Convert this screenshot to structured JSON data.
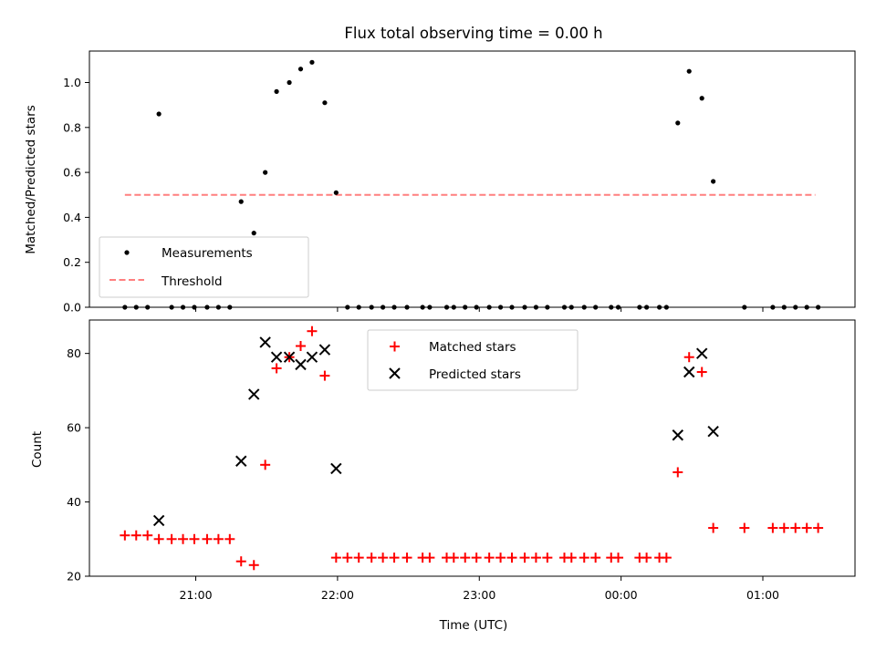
{
  "chart_data": [
    {
      "type": "scatter",
      "title": "Flux total observing time = 0.00 h",
      "xlabel": "",
      "ylabel": "Matched/Predicted stars",
      "xlim": [
        20.25,
        1.65
      ],
      "ylim": [
        0,
        1.14
      ],
      "yticks": [
        "0.0",
        "0.2",
        "0.4",
        "0.6",
        "0.8",
        "1.0"
      ],
      "x_axis_unit": "hours UTC (values > 24 are after midnight)",
      "legend": [
        {
          "name": "Measurements",
          "marker": "dot",
          "color": "#000000"
        },
        {
          "name": "Threshold",
          "marker": "dashed-line",
          "color": "#ff7f7f"
        }
      ],
      "legend_position": "lower-left",
      "series": [
        {
          "name": "Measurements",
          "color": "#000000",
          "points": [
            [
              20.5,
              0
            ],
            [
              20.58,
              0
            ],
            [
              20.66,
              0
            ],
            [
              20.74,
              0.86
            ],
            [
              20.83,
              0
            ],
            [
              20.91,
              0
            ],
            [
              20.99,
              0
            ],
            [
              21.08,
              0
            ],
            [
              21.16,
              0
            ],
            [
              21.24,
              0
            ],
            [
              21.32,
              0.47
            ],
            [
              21.41,
              0.33
            ],
            [
              21.49,
              0.6
            ],
            [
              21.57,
              0.96
            ],
            [
              21.66,
              1.0
            ],
            [
              21.74,
              1.06
            ],
            [
              21.82,
              1.09
            ],
            [
              21.91,
              0.91
            ],
            [
              21.99,
              0.51
            ],
            [
              22.07,
              0
            ],
            [
              22.15,
              0
            ],
            [
              22.24,
              0
            ],
            [
              22.32,
              0
            ],
            [
              22.4,
              0
            ],
            [
              22.49,
              0
            ],
            [
              22.6,
              0
            ],
            [
              22.65,
              0
            ],
            [
              22.77,
              0
            ],
            [
              22.82,
              0
            ],
            [
              22.9,
              0
            ],
            [
              22.98,
              0
            ],
            [
              23.07,
              0
            ],
            [
              23.15,
              0
            ],
            [
              23.23,
              0
            ],
            [
              23.32,
              0
            ],
            [
              23.4,
              0
            ],
            [
              23.48,
              0
            ],
            [
              23.6,
              0
            ],
            [
              23.65,
              0
            ],
            [
              23.74,
              0
            ],
            [
              23.82,
              0
            ],
            [
              23.93,
              0
            ],
            [
              23.98,
              0
            ],
            [
              24.13,
              0
            ],
            [
              24.18,
              0
            ],
            [
              24.27,
              0
            ],
            [
              24.32,
              0.0
            ],
            [
              24.4,
              0.82
            ],
            [
              24.48,
              1.05
            ],
            [
              24.57,
              0.93
            ],
            [
              24.65,
              0.56
            ],
            [
              24.87,
              0
            ],
            [
              25.07,
              0
            ],
            [
              25.15,
              0
            ],
            [
              25.23,
              0
            ],
            [
              25.31,
              0
            ],
            [
              25.39,
              0
            ]
          ]
        }
      ],
      "threshold": {
        "name": "Threshold",
        "y": 0.5,
        "x_from": 20.5,
        "x_to": 25.37,
        "color": "#ff7f7f"
      }
    },
    {
      "type": "scatter",
      "title": "",
      "xlabel": "Time (UTC)",
      "ylabel": "Count",
      "xlim": [
        20.25,
        1.65
      ],
      "ylim": [
        20,
        89
      ],
      "yticks": [
        "20",
        "40",
        "60",
        "80"
      ],
      "xticks": [
        "21:00",
        "22:00",
        "23:00",
        "00:00",
        "01:00"
      ],
      "legend_position": "upper-center",
      "series": [
        {
          "name": "Matched stars",
          "marker": "plus",
          "color": "#ff0000",
          "points": [
            [
              20.5,
              31
            ],
            [
              20.58,
              31
            ],
            [
              20.66,
              31
            ],
            [
              20.74,
              30
            ],
            [
              20.83,
              30
            ],
            [
              20.91,
              30
            ],
            [
              20.99,
              30
            ],
            [
              21.08,
              30
            ],
            [
              21.16,
              30
            ],
            [
              21.24,
              30
            ],
            [
              21.32,
              24
            ],
            [
              21.41,
              23
            ],
            [
              21.49,
              50
            ],
            [
              21.57,
              76
            ],
            [
              21.66,
              79
            ],
            [
              21.74,
              82
            ],
            [
              21.82,
              86
            ],
            [
              21.91,
              74
            ],
            [
              21.99,
              25
            ],
            [
              22.07,
              25
            ],
            [
              22.15,
              25
            ],
            [
              22.24,
              25
            ],
            [
              22.32,
              25
            ],
            [
              22.4,
              25
            ],
            [
              22.49,
              25
            ],
            [
              22.6,
              25
            ],
            [
              22.65,
              25
            ],
            [
              22.77,
              25
            ],
            [
              22.82,
              25
            ],
            [
              22.9,
              25
            ],
            [
              22.98,
              25
            ],
            [
              23.07,
              25
            ],
            [
              23.15,
              25
            ],
            [
              23.23,
              25
            ],
            [
              23.32,
              25
            ],
            [
              23.4,
              25
            ],
            [
              23.48,
              25
            ],
            [
              23.6,
              25
            ],
            [
              23.65,
              25
            ],
            [
              23.74,
              25
            ],
            [
              23.82,
              25
            ],
            [
              23.93,
              25
            ],
            [
              23.98,
              25
            ],
            [
              24.13,
              25
            ],
            [
              24.18,
              25
            ],
            [
              24.27,
              25
            ],
            [
              24.32,
              25
            ],
            [
              24.4,
              48
            ],
            [
              24.48,
              79
            ],
            [
              24.57,
              75
            ],
            [
              24.65,
              33
            ],
            [
              24.87,
              33
            ],
            [
              25.07,
              33
            ],
            [
              25.15,
              33
            ],
            [
              25.23,
              33
            ],
            [
              25.31,
              33
            ],
            [
              25.39,
              33
            ]
          ]
        },
        {
          "name": "Predicted stars",
          "marker": "x",
          "color": "#000000",
          "points": [
            [
              20.74,
              35
            ],
            [
              21.32,
              51
            ],
            [
              21.41,
              69
            ],
            [
              21.49,
              83
            ],
            [
              21.57,
              79
            ],
            [
              21.66,
              79
            ],
            [
              21.74,
              77
            ],
            [
              21.82,
              79
            ],
            [
              21.91,
              81
            ],
            [
              21.99,
              49
            ],
            [
              24.4,
              58
            ],
            [
              24.48,
              75
            ],
            [
              24.57,
              80
            ],
            [
              24.65,
              59
            ]
          ]
        }
      ]
    }
  ]
}
